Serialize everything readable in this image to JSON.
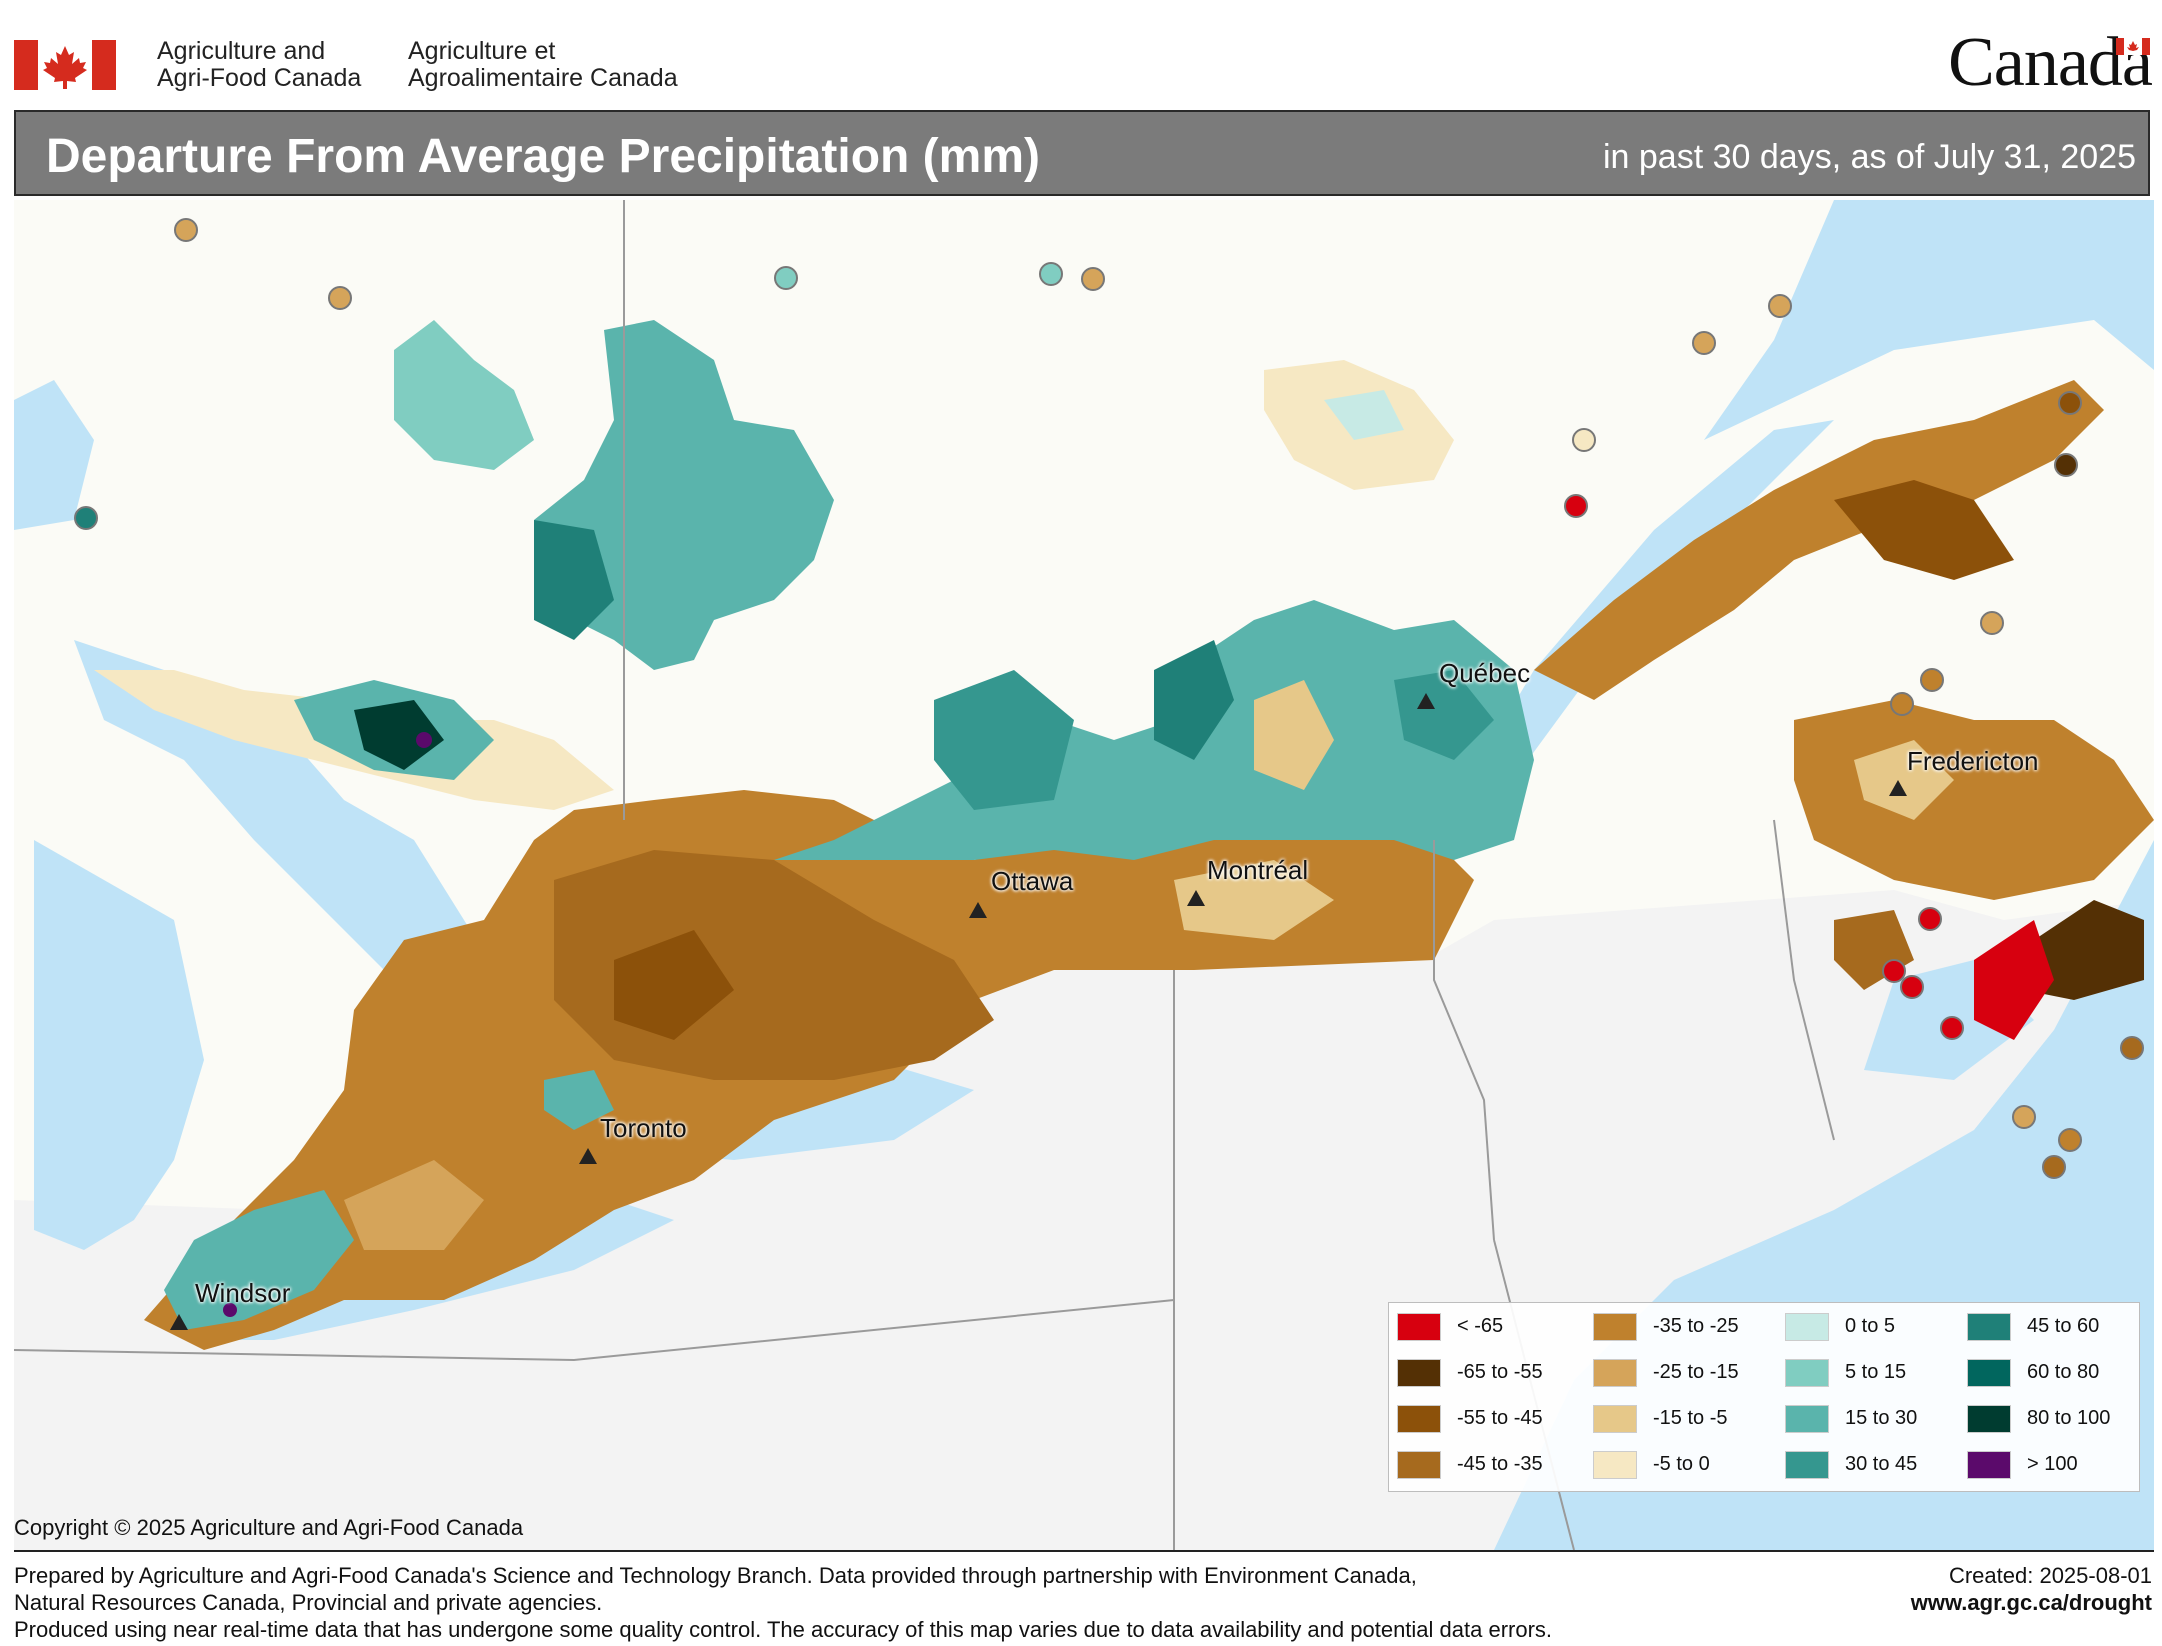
{
  "header": {
    "dept_en_line1": "Agriculture and",
    "dept_en_line2": "Agri-Food Canada",
    "dept_fr_line1": "Agriculture et",
    "dept_fr_line2": "Agroalimentaire Canada",
    "wordmark": "Canada",
    "flag_color": "#d52b1e"
  },
  "title": {
    "main": "Departure From Average Precipitation (mm)",
    "sub": "in past 30 days, as of July 31, 2025"
  },
  "cities": [
    {
      "name": "Québec"
    },
    {
      "name": "Fredericton"
    },
    {
      "name": "Ottawa"
    },
    {
      "name": "Montréal"
    },
    {
      "name": "Toronto"
    },
    {
      "name": "Windsor"
    }
  ],
  "legend": {
    "items": [
      {
        "label": "< -65",
        "color": "#d7000f"
      },
      {
        "label": "-65 to -55",
        "color": "#543005"
      },
      {
        "label": "-55 to -45",
        "color": "#8c510a"
      },
      {
        "label": "-45 to -35",
        "color": "#a66a1e"
      },
      {
        "label": "-35 to -25",
        "color": "#bf812d"
      },
      {
        "label": "-25 to -15",
        "color": "#d5a45a"
      },
      {
        "label": "-15 to -5",
        "color": "#e6c889"
      },
      {
        "label": "-5 to 0",
        "color": "#f6e8c3"
      },
      {
        "label": "0 to 5",
        "color": "#c7eae5"
      },
      {
        "label": "5 to 15",
        "color": "#80cdc1"
      },
      {
        "label": "15 to 30",
        "color": "#5ab4ac"
      },
      {
        "label": "30 to 45",
        "color": "#35978f"
      },
      {
        "label": "45 to 60",
        "color": "#1f8078"
      },
      {
        "label": "60 to 80",
        "color": "#01665e"
      },
      {
        "label": "80 to 100",
        "color": "#003c30"
      },
      {
        "label": "> 100",
        "color": "#5b0a6b"
      }
    ]
  },
  "copyright": "Copyright © 2025 Agriculture and Agri-Food Canada",
  "footer": {
    "line1": "Prepared by Agriculture and Agri-Food Canada's Science and Technology Branch. Data provided through partnership with Environment Canada,",
    "line2": "Natural Resources Canada, Provincial and private agencies.",
    "line3": "Produced using near real-time data that has undergone some quality control. The accuracy of this map varies due to data availability and potential data errors.",
    "created": "Created: 2025-08-01",
    "url": "www.agr.gc.ca/drought"
  },
  "map_colors": {
    "water": "#bfe3f7",
    "land_canada": "#fbfbf6",
    "land_us": "#f3f3f3",
    "border": "#9a9a9a",
    "roads": "#f4d9a8"
  }
}
